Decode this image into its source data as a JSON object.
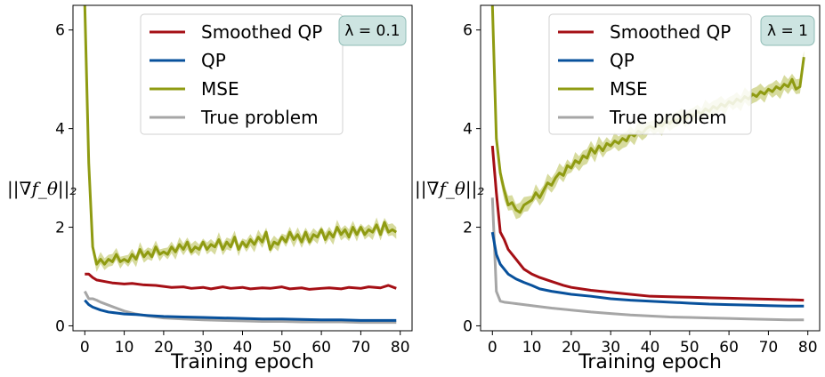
{
  "chart_data": [
    {
      "type": "line",
      "annotation": "λ = 0.1",
      "xlabel": "Training epoch",
      "ylabel": "||∇f_θ||₂",
      "xlim": [
        -3,
        83
      ],
      "ylim": [
        -0.1,
        6.5
      ],
      "xticks": [
        0,
        10,
        20,
        30,
        40,
        50,
        60,
        70,
        80
      ],
      "yticks": [
        0,
        2,
        4,
        6
      ],
      "legend_position": "top-right",
      "series": [
        {
          "name": "Smoothed QP",
          "color": "#a50f15",
          "x": [
            0,
            1,
            2,
            3,
            5,
            7,
            10,
            12,
            15,
            18,
            20,
            22,
            25,
            27,
            30,
            32,
            35,
            37,
            40,
            42,
            45,
            47,
            50,
            52,
            55,
            57,
            60,
            62,
            65,
            67,
            70,
            72,
            75,
            77,
            79
          ],
          "y": [
            1.05,
            1.05,
            0.98,
            0.93,
            0.9,
            0.87,
            0.85,
            0.86,
            0.83,
            0.82,
            0.8,
            0.78,
            0.79,
            0.76,
            0.78,
            0.75,
            0.79,
            0.76,
            0.78,
            0.75,
            0.77,
            0.76,
            0.79,
            0.75,
            0.77,
            0.74,
            0.76,
            0.77,
            0.75,
            0.78,
            0.76,
            0.79,
            0.77,
            0.82,
            0.76
          ]
        },
        {
          "name": "QP",
          "color": "#08519c",
          "x": [
            0,
            1,
            2,
            4,
            6,
            8,
            10,
            13,
            16,
            20,
            25,
            30,
            35,
            40,
            45,
            50,
            55,
            60,
            65,
            70,
            75,
            79
          ],
          "y": [
            0.52,
            0.43,
            0.38,
            0.32,
            0.28,
            0.26,
            0.24,
            0.23,
            0.21,
            0.19,
            0.18,
            0.17,
            0.16,
            0.15,
            0.14,
            0.14,
            0.13,
            0.12,
            0.12,
            0.11,
            0.11,
            0.11
          ]
        },
        {
          "name": "MSE",
          "color": "#8f9b12",
          "band_color": "#c9cf7d",
          "x": [
            0,
            1,
            2,
            3,
            4,
            5,
            6,
            7,
            8,
            9,
            10,
            11,
            12,
            13,
            14,
            15,
            16,
            17,
            18,
            19,
            20,
            21,
            22,
            23,
            24,
            25,
            26,
            27,
            28,
            29,
            30,
            31,
            32,
            33,
            34,
            35,
            36,
            37,
            38,
            39,
            40,
            41,
            42,
            43,
            44,
            45,
            46,
            47,
            48,
            49,
            50,
            51,
            52,
            53,
            54,
            55,
            56,
            57,
            58,
            59,
            60,
            61,
            62,
            63,
            64,
            65,
            66,
            67,
            68,
            69,
            70,
            71,
            72,
            73,
            74,
            75,
            76,
            77,
            78,
            79
          ],
          "y": [
            6.5,
            3.3,
            1.6,
            1.25,
            1.35,
            1.25,
            1.35,
            1.3,
            1.45,
            1.3,
            1.35,
            1.3,
            1.45,
            1.35,
            1.55,
            1.4,
            1.5,
            1.4,
            1.6,
            1.45,
            1.5,
            1.45,
            1.6,
            1.5,
            1.65,
            1.55,
            1.7,
            1.5,
            1.6,
            1.55,
            1.7,
            1.55,
            1.65,
            1.6,
            1.75,
            1.55,
            1.7,
            1.6,
            1.8,
            1.55,
            1.7,
            1.6,
            1.75,
            1.65,
            1.8,
            1.7,
            1.9,
            1.55,
            1.7,
            1.65,
            1.8,
            1.7,
            1.9,
            1.75,
            1.85,
            1.7,
            1.9,
            1.7,
            1.85,
            1.8,
            1.95,
            1.75,
            1.9,
            1.8,
            2.0,
            1.85,
            1.95,
            1.8,
            2.0,
            1.85,
            2.0,
            1.85,
            1.95,
            1.9,
            2.05,
            1.85,
            2.1,
            1.9,
            1.95,
            1.9
          ],
          "band": 0.12
        },
        {
          "name": "True problem",
          "color": "#a6a6a6",
          "x": [
            0,
            1,
            2,
            3,
            4,
            6,
            8,
            10,
            13,
            16,
            20,
            25,
            30,
            35,
            40,
            45,
            50,
            55,
            60,
            65,
            70,
            75,
            79
          ],
          "y": [
            0.7,
            0.55,
            0.55,
            0.52,
            0.48,
            0.42,
            0.36,
            0.3,
            0.24,
            0.2,
            0.16,
            0.14,
            0.12,
            0.11,
            0.1,
            0.09,
            0.09,
            0.08,
            0.08,
            0.08,
            0.07,
            0.07,
            0.07
          ]
        }
      ]
    },
    {
      "type": "line",
      "annotation": "λ = 1",
      "xlabel": "Training epoch",
      "ylabel": "||∇f_θ||₂",
      "xlim": [
        -3,
        83
      ],
      "ylim": [
        -0.1,
        6.5
      ],
      "xticks": [
        0,
        10,
        20,
        30,
        40,
        50,
        60,
        70,
        80
      ],
      "yticks": [
        0,
        2,
        4,
        6
      ],
      "legend_position": "top-right",
      "series": [
        {
          "name": "Smoothed QP",
          "color": "#a50f15",
          "x": [
            0,
            1,
            2,
            3,
            4,
            5,
            6,
            7,
            8,
            10,
            12,
            15,
            18,
            20,
            25,
            30,
            35,
            40,
            45,
            50,
            55,
            60,
            65,
            70,
            75,
            79
          ],
          "y": [
            3.65,
            2.7,
            1.9,
            1.75,
            1.55,
            1.45,
            1.35,
            1.25,
            1.15,
            1.05,
            0.98,
            0.9,
            0.82,
            0.78,
            0.72,
            0.68,
            0.64,
            0.6,
            0.59,
            0.58,
            0.57,
            0.56,
            0.55,
            0.54,
            0.53,
            0.52
          ]
        },
        {
          "name": "QP",
          "color": "#08519c",
          "x": [
            0,
            1,
            2,
            3,
            4,
            5,
            6,
            8,
            10,
            12,
            15,
            20,
            25,
            30,
            35,
            40,
            45,
            50,
            55,
            60,
            65,
            70,
            75,
            79
          ],
          "y": [
            1.9,
            1.45,
            1.25,
            1.15,
            1.05,
            1.0,
            0.95,
            0.88,
            0.82,
            0.75,
            0.7,
            0.64,
            0.6,
            0.55,
            0.52,
            0.5,
            0.48,
            0.46,
            0.44,
            0.43,
            0.42,
            0.41,
            0.4,
            0.4
          ]
        },
        {
          "name": "MSE",
          "color": "#8f9b12",
          "band_color": "#c9cf7d",
          "x": [
            0,
            1,
            2,
            3,
            4,
            5,
            6,
            7,
            8,
            9,
            10,
            11,
            12,
            13,
            14,
            15,
            16,
            17,
            18,
            19,
            20,
            21,
            22,
            23,
            24,
            25,
            26,
            27,
            28,
            29,
            30,
            31,
            32,
            33,
            34,
            35,
            36,
            37,
            38,
            39,
            40,
            41,
            42,
            43,
            44,
            45,
            46,
            47,
            48,
            49,
            50,
            51,
            52,
            53,
            54,
            55,
            56,
            57,
            58,
            59,
            60,
            61,
            62,
            63,
            64,
            65,
            66,
            67,
            68,
            69,
            70,
            71,
            72,
            73,
            74,
            75,
            76,
            77,
            78,
            79
          ],
          "y": [
            6.5,
            3.8,
            3.1,
            2.75,
            2.45,
            2.5,
            2.35,
            2.3,
            2.45,
            2.5,
            2.55,
            2.7,
            2.6,
            2.75,
            2.9,
            2.85,
            3.0,
            3.1,
            3.05,
            3.25,
            3.2,
            3.35,
            3.3,
            3.45,
            3.4,
            3.6,
            3.5,
            3.65,
            3.55,
            3.7,
            3.65,
            3.75,
            3.7,
            3.8,
            3.75,
            3.9,
            3.85,
            3.95,
            3.9,
            4.0,
            4.05,
            4.0,
            4.1,
            4.05,
            4.15,
            4.1,
            4.2,
            4.15,
            4.25,
            4.2,
            4.3,
            4.25,
            4.35,
            4.3,
            4.4,
            4.35,
            4.45,
            4.4,
            4.5,
            4.45,
            4.55,
            4.5,
            4.6,
            4.55,
            4.65,
            4.6,
            4.7,
            4.65,
            4.75,
            4.7,
            4.8,
            4.75,
            4.85,
            4.8,
            4.9,
            4.85,
            5.0,
            4.8,
            4.85,
            5.45
          ],
          "band": 0.15
        },
        {
          "name": "True problem",
          "color": "#a6a6a6",
          "x": [
            0,
            1,
            2,
            3,
            4,
            5,
            6,
            8,
            10,
            12,
            15,
            20,
            25,
            30,
            35,
            40,
            45,
            50,
            55,
            60,
            65,
            70,
            75,
            79
          ],
          "y": [
            2.6,
            0.7,
            0.5,
            0.48,
            0.47,
            0.46,
            0.45,
            0.43,
            0.41,
            0.39,
            0.36,
            0.32,
            0.28,
            0.25,
            0.22,
            0.2,
            0.18,
            0.17,
            0.16,
            0.15,
            0.14,
            0.13,
            0.12,
            0.12
          ]
        }
      ]
    }
  ]
}
